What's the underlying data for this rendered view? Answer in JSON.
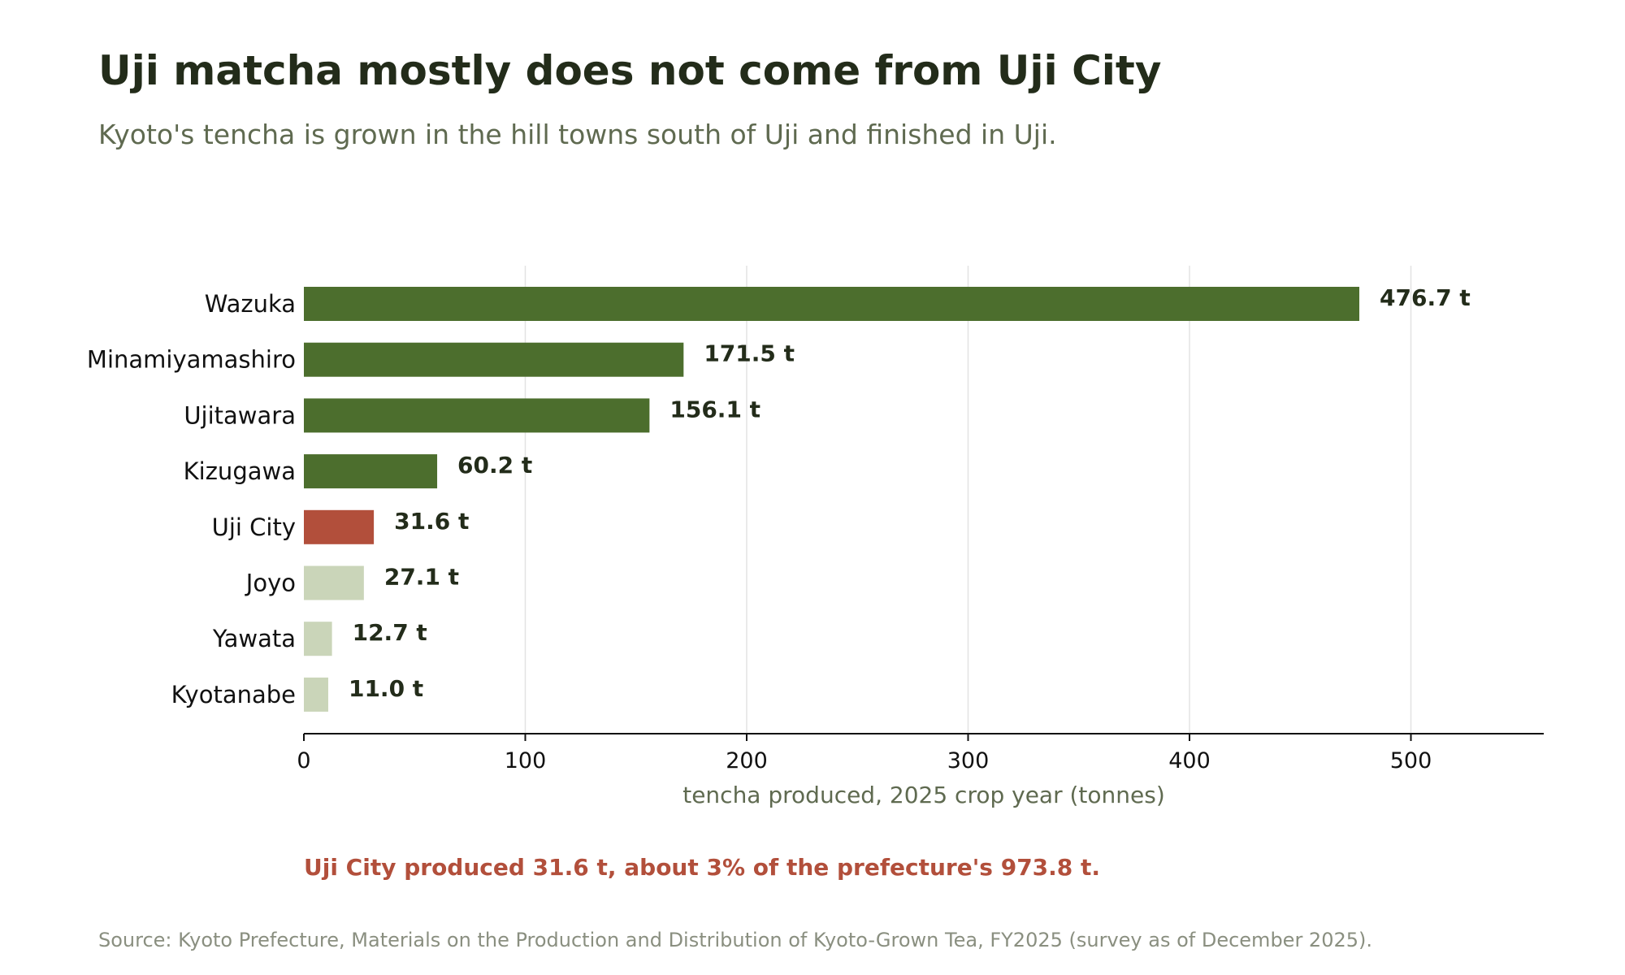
{
  "header": {
    "title": "Uji matcha mostly does not come from Uji City",
    "subtitle": "Kyoto's tencha is grown in the hill towns south of Uji and finished in Uji."
  },
  "chart_data": {
    "type": "bar",
    "orientation": "horizontal",
    "categories": [
      "Wazuka",
      "Minamiyamashiro",
      "Ujitawara",
      "Kizugawa",
      "Uji City",
      "Joyo",
      "Yawata",
      "Kyotanabe"
    ],
    "values": [
      476.7,
      171.5,
      156.1,
      60.2,
      31.6,
      27.1,
      12.7,
      11.0
    ],
    "value_labels": [
      "476.7 t",
      "171.5 t",
      "156.1 t",
      "60.2 t",
      "31.6 t",
      "27.1 t",
      "12.7 t",
      "11.0 t"
    ],
    "bar_colors": [
      "#4c6e2d",
      "#4c6e2d",
      "#4c6e2d",
      "#4c6e2d",
      "#b24f3b",
      "#cad5b9",
      "#cad5b9",
      "#cad5b9"
    ],
    "xlabel": "tencha produced, 2025 crop year (tonnes)",
    "xlim": [
      0,
      560
    ],
    "xticks": [
      0,
      100,
      200,
      300,
      400,
      500
    ],
    "xtick_labels": [
      "0",
      "100",
      "200",
      "300",
      "400",
      "500"
    ],
    "grid": "vertical",
    "legend": "none"
  },
  "annotation": "Uji City produced 31.6 t, about 3% of the prefecture's 973.8 t.",
  "source": "Source: Kyoto Prefecture, Materials on the Production and Distribution of Kyoto-Grown Tea, FY2025 (survey as of December 2025).",
  "colors": {
    "title": "#232c1a",
    "subtitle": "#5f6a50",
    "highlight": "#b24f3b",
    "primary_bar": "#4c6e2d",
    "muted_bar": "#cad5b9",
    "gridline": "#e3e3e3",
    "source": "#8a8f80"
  }
}
